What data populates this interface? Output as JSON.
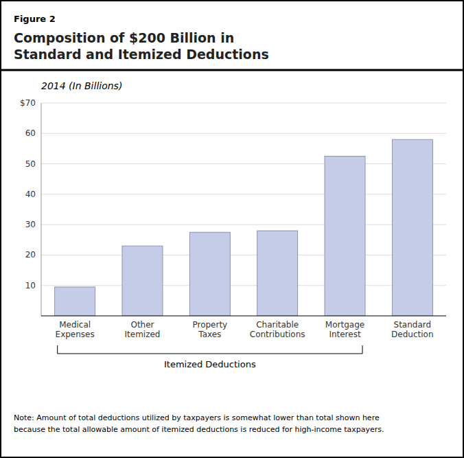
{
  "chart_data": {
    "type": "bar",
    "title": "Composition of $200 Billion in\nStandard and Itemized Deductions",
    "subtitle": "2014 (In Billions)",
    "categories": [
      "Medical\nExpenses",
      "Other\nItemized",
      "Property\nTaxes",
      "Charitable\nContributions",
      "Mortgage\nInterest",
      "Standard\nDeduction"
    ],
    "values": [
      9.5,
      23.0,
      27.5,
      28.0,
      52.5,
      58.0
    ],
    "color": "#c5cce8",
    "ylim": [
      0,
      70
    ],
    "yticks": [
      10,
      20,
      30,
      40,
      50,
      60,
      {
        "value": 70,
        "label": "$70"
      }
    ],
    "grid": true,
    "annotations": [
      {
        "text": "Figure 2"
      },
      {
        "text": "Itemized Deductions",
        "start": 0,
        "end": 4
      },
      {
        "text": "Note: Amount of total deductions utilized by taxpayers is somewhat lower than total shown here\nbecause the total allowable amount of itemized deductions is reduced for high-income taxpayers."
      }
    ]
  }
}
